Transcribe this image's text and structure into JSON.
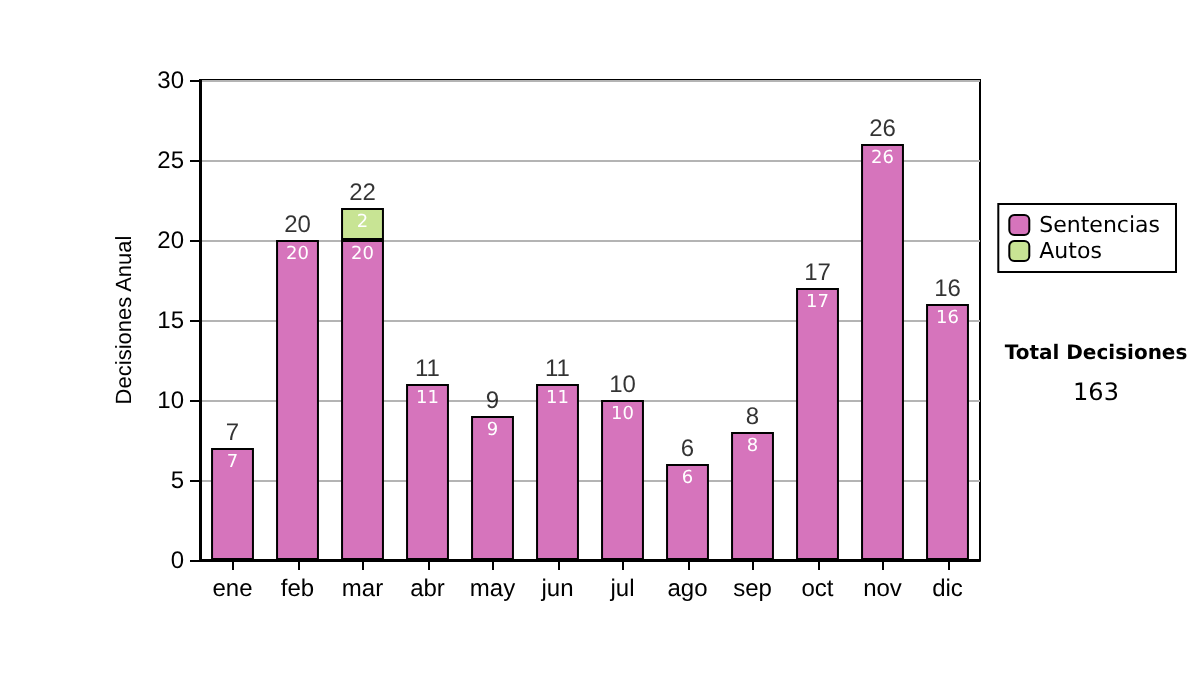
{
  "chart_data": {
    "type": "bar",
    "stacked": true,
    "ylabel": "Decisiones Anual",
    "categories": [
      "ene",
      "feb",
      "mar",
      "abr",
      "may",
      "jun",
      "jul",
      "ago",
      "sep",
      "oct",
      "nov",
      "dic"
    ],
    "series": [
      {
        "name": "Sentencias",
        "color": "#d674bc",
        "values": [
          7,
          20,
          20,
          11,
          9,
          11,
          10,
          6,
          8,
          17,
          26,
          16
        ]
      },
      {
        "name": "Autos",
        "color": "#c8e494",
        "values": [
          null,
          null,
          2,
          null,
          null,
          null,
          null,
          null,
          null,
          null,
          null,
          null
        ]
      }
    ],
    "totals": [
      "7",
      "20",
      "22",
      "11",
      "9",
      "11",
      "10",
      "6",
      "8",
      "17",
      "26",
      "16"
    ],
    "data_labels": true,
    "ylim": [
      0,
      30
    ],
    "yticks": [
      0,
      5,
      10,
      15,
      20,
      25,
      30
    ],
    "grid": "y",
    "legend": "right",
    "annotations": [
      "Total Decisiones",
      "163"
    ]
  }
}
